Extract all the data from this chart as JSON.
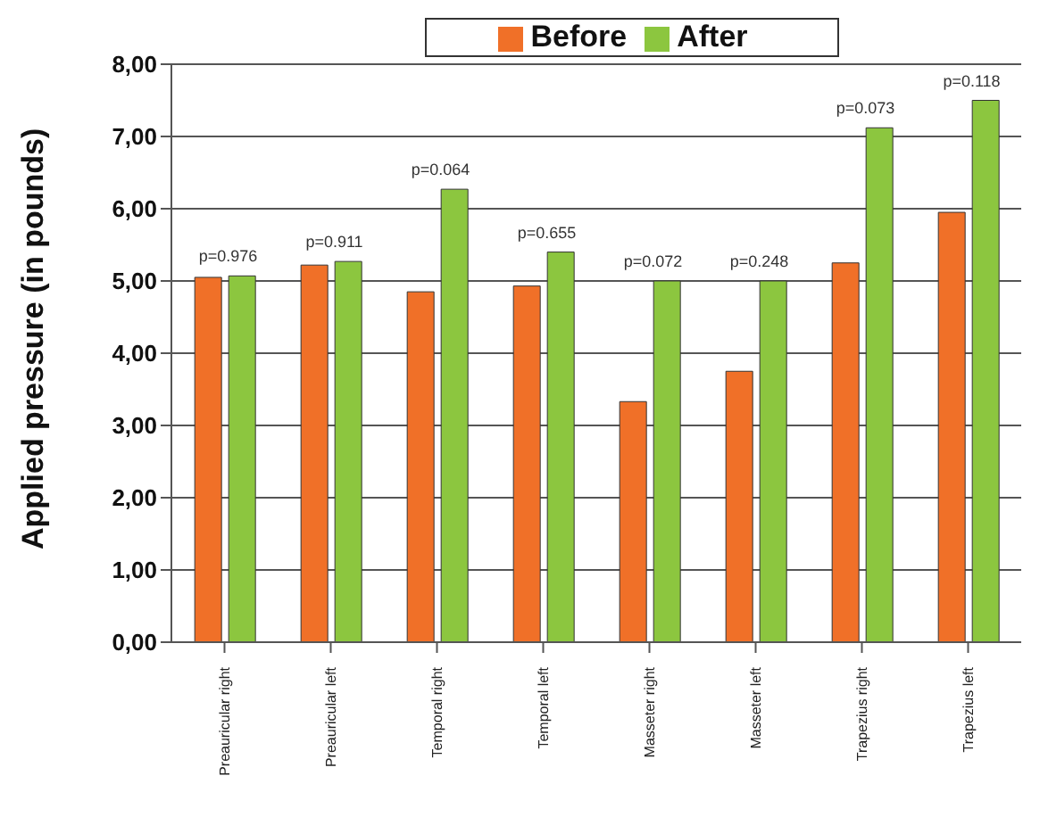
{
  "chart_data": {
    "type": "bar",
    "ylabel": "Applied pressure (in pounds)",
    "categories": [
      "Preauricular right",
      "Preauricular left",
      "Temporal right",
      "Temporal left",
      "Masseter right",
      "Masseter left",
      "Trapezius right",
      "Trapezius left"
    ],
    "series": [
      {
        "name": "Before",
        "color": "#f07028",
        "values": [
          5.05,
          5.22,
          4.85,
          4.93,
          3.33,
          3.75,
          5.25,
          5.95
        ]
      },
      {
        "name": "After",
        "color": "#8cc63f",
        "values": [
          5.07,
          5.27,
          6.27,
          5.4,
          5.0,
          5.0,
          7.12,
          7.5
        ]
      }
    ],
    "ylim": [
      0,
      8
    ],
    "yticks": [
      {
        "value": 0,
        "label": "0,00"
      },
      {
        "value": 1,
        "label": "1,00"
      },
      {
        "value": 2,
        "label": "2,00"
      },
      {
        "value": 3,
        "label": "3,00"
      },
      {
        "value": 4,
        "label": "4,00"
      },
      {
        "value": 5,
        "label": "5,00"
      },
      {
        "value": 6,
        "label": "6,00"
      },
      {
        "value": 7,
        "label": "7,00"
      },
      {
        "value": 8,
        "label": "8,00"
      }
    ],
    "grid": "y",
    "legend": "top",
    "annotations": [
      {
        "text": "p=0.976",
        "x": "Preauricular right",
        "y": 5.07
      },
      {
        "text": "p=0.911",
        "x": "Preauricular left",
        "y": 5.27
      },
      {
        "text": "p=0.064",
        "x": "Temporal right",
        "y": 6.27
      },
      {
        "text": "p=0.655",
        "x": "Temporal left",
        "y": 5.4
      },
      {
        "text": "p=0.072",
        "x": "Masseter right",
        "y": 5.0
      },
      {
        "text": "p=0.248",
        "x": "Masseter left",
        "y": 5.0
      },
      {
        "text": "p=0.073",
        "x": "Trapezius right",
        "y": 7.12
      },
      {
        "text": "p=0.118",
        "x": "Trapezius left",
        "y": 7.5
      }
    ]
  }
}
